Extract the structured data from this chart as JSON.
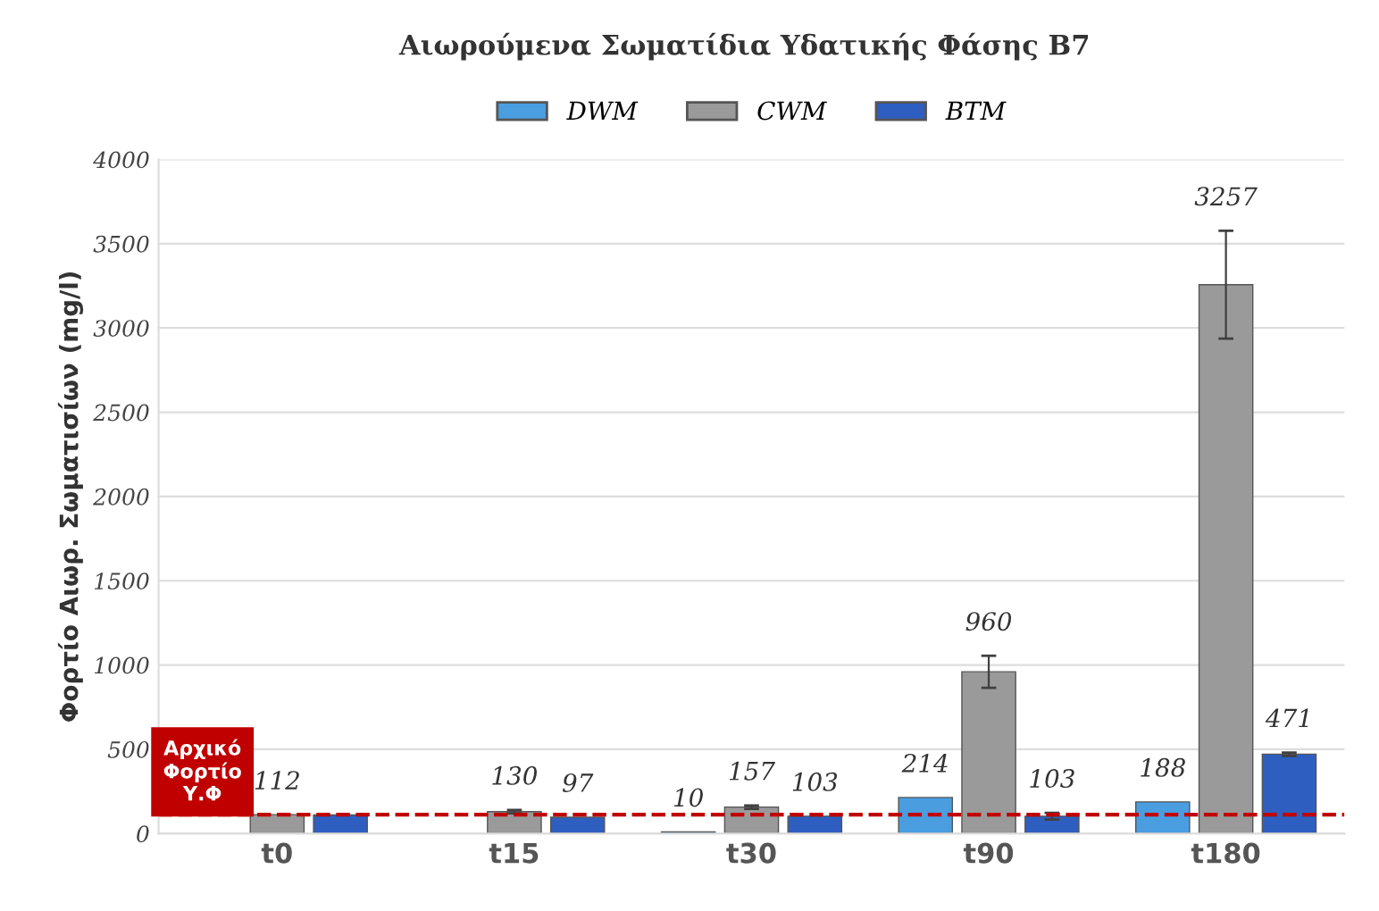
{
  "chart_data": {
    "type": "bar",
    "title": "Αιωρούμενα Σωματίδια Υδατικής Φάσης Β7",
    "ylabel": "Φορτίο Αιωρ. Σωματισίων (mg/l)",
    "categories": [
      "t0",
      "t15",
      "t30",
      "t90",
      "t180"
    ],
    "series": [
      {
        "name": "DWM",
        "color": "#4a9ee0",
        "values": [
          null,
          null,
          10,
          214,
          188
        ],
        "value_labels": [
          null,
          null,
          "10",
          "214",
          "188"
        ]
      },
      {
        "name": "CWM",
        "color": "#9a9a9a",
        "values": [
          112,
          130,
          157,
          960,
          3257
        ],
        "value_labels": [
          "112",
          "130",
          "157",
          "960",
          "3257"
        ],
        "errors": [
          null,
          10,
          10,
          95,
          320
        ]
      },
      {
        "name": "BTM",
        "color": "#2e5fc0",
        "values": [
          110,
          97,
          103,
          103,
          471
        ],
        "value_labels": [
          null,
          "97",
          "103",
          "103",
          "471"
        ],
        "errors": [
          null,
          null,
          null,
          20,
          10
        ]
      }
    ],
    "ylim": [
      0,
      4000
    ],
    "yticks": [
      0,
      500,
      1000,
      1500,
      2000,
      2500,
      3000,
      3500,
      4000
    ],
    "ref_lines": [
      {
        "axis": "y",
        "value": 112,
        "label": "Αρχικό\nΦορτίο\nΥ.Φ",
        "color": "#c00000",
        "line_style": "dashed"
      }
    ],
    "grid": "y",
    "legend": "top"
  }
}
